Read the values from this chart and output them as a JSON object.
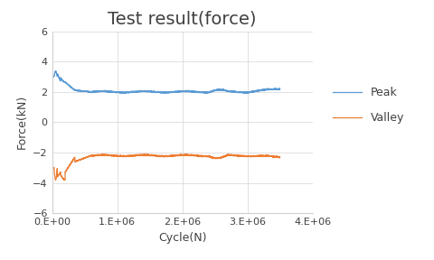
{
  "title": "Test result(force)",
  "xlabel": "Cycle(N)",
  "ylabel": "Force(kN)",
  "xlim": [
    0,
    4000000
  ],
  "ylim": [
    -6,
    6
  ],
  "yticks": [
    -6,
    -4,
    -2,
    0,
    2,
    4,
    6
  ],
  "xticks": [
    0,
    1000000,
    2000000,
    3000000,
    4000000
  ],
  "xtick_labels": [
    "0.E+00",
    "1.E+06",
    "2.E+06",
    "3.E+06",
    "4.E+06"
  ],
  "peak_color": "#5B9BD5",
  "valley_color": "#ED7D31",
  "legend_labels": [
    "Peak",
    "Valley"
  ],
  "title_fontsize": 14,
  "axis_fontsize": 9,
  "tick_fontsize": 8,
  "figsize": [
    4.8,
    2.88
  ],
  "dpi": 100
}
